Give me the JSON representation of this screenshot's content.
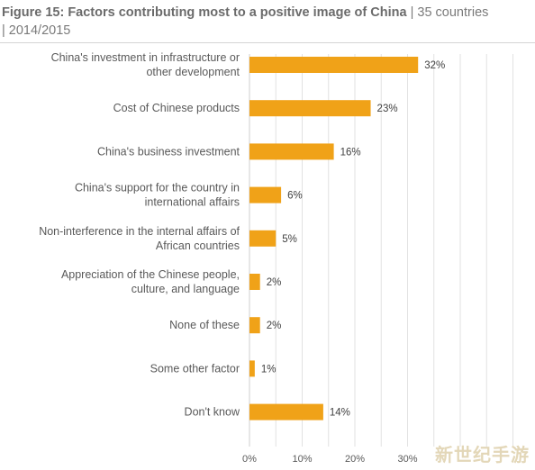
{
  "header": {
    "title": "Figure 15: Factors contributing most to a positive image of China",
    "subtitle_line1": "| 35 countries",
    "subtitle_line2": "| 2014/2015"
  },
  "watermark": "新世纪手游",
  "colors": {
    "bar": "#F0A218",
    "grid": "#e2e2e2",
    "text": "#595959"
  },
  "chart_data": {
    "type": "bar",
    "orientation": "horizontal",
    "title": "Figure 15: Factors contributing most to a positive image of China",
    "subtitle": "| 35 countries | 2014/2015",
    "categories": [
      "China's investment in infrastructure or other development",
      "Cost of Chinese products",
      "China's business investment",
      "China's support for the country in international affairs",
      "Non-interference in the internal affairs of African countries",
      "Appreciation of the Chinese people, culture, and language",
      "None of these",
      "Some other factor",
      "Don't know"
    ],
    "category_lines": [
      [
        "China's investment in infrastructure or",
        "other development"
      ],
      [
        "Cost of Chinese products"
      ],
      [
        "China's business investment"
      ],
      [
        "China's support for the country in",
        "international affairs"
      ],
      [
        "Non-interference in the internal affairs of",
        "African countries"
      ],
      [
        "Appreciation of the Chinese people,",
        "culture, and language"
      ],
      [
        "None of these"
      ],
      [
        "Some other factor"
      ],
      [
        "Don't know"
      ]
    ],
    "values": [
      32,
      23,
      16,
      6,
      5,
      2,
      2,
      1,
      14
    ],
    "value_labels": [
      "32%",
      "23%",
      "16%",
      "6%",
      "5%",
      "2%",
      "2%",
      "1%",
      "14%"
    ],
    "x_ticks": [
      0,
      10,
      20,
      30
    ],
    "x_tick_labels": [
      "0%",
      "10%",
      "20%",
      "30%"
    ],
    "xlim": [
      0,
      50
    ],
    "grid": true
  }
}
